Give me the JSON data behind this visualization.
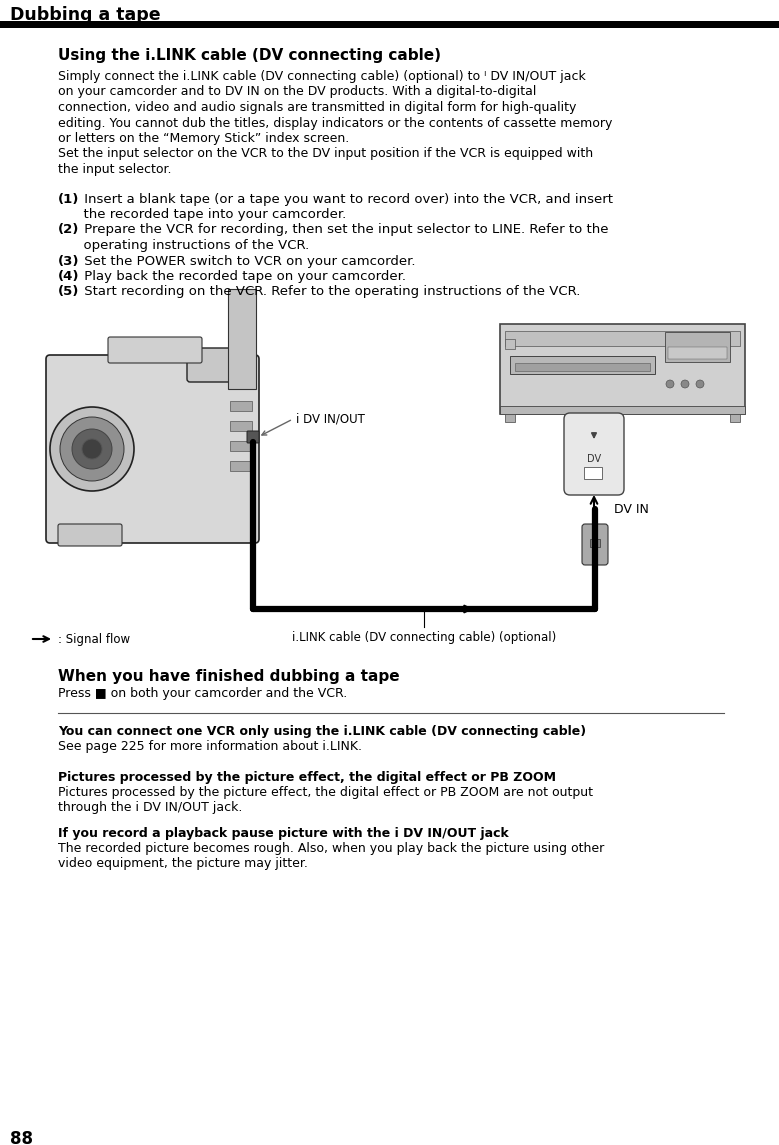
{
  "page_num": "88",
  "header": "Dubbing a tape",
  "section1_title": "Using the i.LINK cable (DV connecting cable)",
  "section1_body_lines": [
    "Simply connect the i.LINK cable (DV connecting cable) (optional) to ᴵ DV IN/OUT jack",
    "on your camcorder and to DV IN on the DV products. With a digital-to-digital",
    "connection, video and audio signals are transmitted in digital form for high-quality",
    "editing. You cannot dub the titles, display indicators or the contents of cassette memory",
    "or letters on the “Memory Stick” index screen.",
    "Set the input selector on the VCR to the DV input position if the VCR is equipped with",
    "the input selector."
  ],
  "step1a": "(1) Insert a blank tape (or a tape you want to record over) into the VCR, and insert",
  "step1b": "      the recorded tape into your camcorder.",
  "step2a": "(2) Prepare the VCR for recording, then set the input selector to LINE. Refer to the",
  "step2b": "      operating instructions of the VCR.",
  "step3": "(3) Set the POWER switch to VCR on your camcorder.",
  "step4": "(4) Play back the recorded tape on your camcorder.",
  "step5": "(5) Start recording on the VCR. Refer to the operating instructions of the VCR.",
  "diagram_label_dv_inout": "i DV IN/OUT",
  "diagram_label_dv_in": "DV IN",
  "diagram_cable_label": "i.LINK cable (DV connecting cable) (optional)",
  "diagram_signal_label": ": Signal flow",
  "section2_title": "When you have finished dubbing a tape",
  "section2_body": "Press ■ on both your camcorder and the VCR.",
  "note1_title": "You can connect one VCR only using the i.LINK cable (DV connecting cable)",
  "note1_body": "See page 225 for more information about i.LINK.",
  "note2_title": "Pictures processed by the picture effect, the digital effect or PB ZOOM",
  "note2_body1": "Pictures processed by the picture effect, the digital effect or PB ZOOM are not output",
  "note2_body2": "through the i DV IN/OUT jack.",
  "note3_title": "If you record a playback pause picture with the i DV IN/OUT jack",
  "note3_body1": "The recorded picture becomes rough. Also, when you play back the picture using other",
  "note3_body2": "video equipment, the picture may jitter.",
  "bg_color": "#ffffff",
  "text_color": "#000000",
  "header_line_color": "#000000"
}
